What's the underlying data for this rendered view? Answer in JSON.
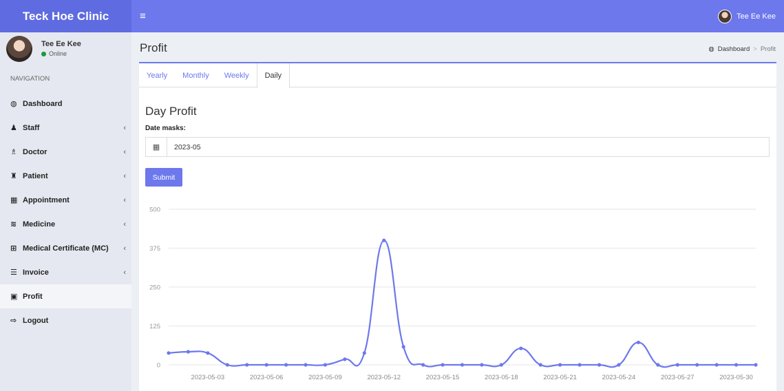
{
  "brand": "Teck Hoe Clinic",
  "topbar": {
    "menu_icon": "hamburger-icon",
    "user_name": "Tee Ee Kee"
  },
  "sidebar": {
    "user_name": "Tee Ee Kee",
    "status": "Online",
    "nav_header": "NAVIGATION",
    "items": [
      {
        "label": "Dashboard",
        "icon": "dashboard-icon",
        "glyph": "◍",
        "submenu": false
      },
      {
        "label": "Staff",
        "icon": "user-icon",
        "glyph": "♟",
        "submenu": true
      },
      {
        "label": "Doctor",
        "icon": "doctor-icon",
        "glyph": "♗",
        "submenu": true
      },
      {
        "label": "Patient",
        "icon": "users-icon",
        "glyph": "♜",
        "submenu": true
      },
      {
        "label": "Appointment",
        "icon": "calendar-icon",
        "glyph": "▦",
        "submenu": true
      },
      {
        "label": "Medicine",
        "icon": "database-icon",
        "glyph": "≋",
        "submenu": true
      },
      {
        "label": "Medical Certificate (MC)",
        "icon": "plus-square-icon",
        "glyph": "⊞",
        "submenu": true
      },
      {
        "label": "Invoice",
        "icon": "list-icon",
        "glyph": "☰",
        "submenu": true
      },
      {
        "label": "Profit",
        "icon": "money-icon",
        "glyph": "▣",
        "submenu": false,
        "active": true
      },
      {
        "label": "Logout",
        "icon": "sign-out-icon",
        "glyph": "⇨",
        "submenu": false
      }
    ]
  },
  "header": {
    "title": "Profit",
    "breadcrumb": {
      "home": "Dashboard",
      "current": "Profit"
    }
  },
  "tabs": [
    {
      "label": "Yearly",
      "active": false
    },
    {
      "label": "Monthly",
      "active": false
    },
    {
      "label": "Weekly",
      "active": false
    },
    {
      "label": "Daily",
      "active": true
    }
  ],
  "form": {
    "section_title": "Day Profit",
    "date_label": "Date masks:",
    "date_value": "2023-05",
    "submit_label": "Submit"
  },
  "colors": {
    "accent": "#6c78ec",
    "brand": "#5f6be0"
  },
  "chart_data": {
    "type": "line",
    "x": [
      "2023-05-01",
      "2023-05-02",
      "2023-05-03",
      "2023-05-04",
      "2023-05-05",
      "2023-05-06",
      "2023-05-07",
      "2023-05-08",
      "2023-05-09",
      "2023-05-10",
      "2023-05-11",
      "2023-05-12",
      "2023-05-13",
      "2023-05-14",
      "2023-05-15",
      "2023-05-16",
      "2023-05-17",
      "2023-05-18",
      "2023-05-19",
      "2023-05-20",
      "2023-05-21",
      "2023-05-22",
      "2023-05-23",
      "2023-05-24",
      "2023-05-25",
      "2023-05-26",
      "2023-05-27",
      "2023-05-28",
      "2023-05-29",
      "2023-05-30",
      "2023-05-31"
    ],
    "values": [
      38,
      42,
      38,
      0,
      0,
      0,
      0,
      0,
      0,
      18,
      38,
      400,
      58,
      0,
      0,
      0,
      0,
      0,
      53,
      0,
      0,
      0,
      0,
      0,
      72,
      0,
      0,
      0,
      0,
      0,
      0
    ],
    "xticks": [
      "2023-05-03",
      "2023-05-06",
      "2023-05-09",
      "2023-05-12",
      "2023-05-15",
      "2023-05-18",
      "2023-05-21",
      "2023-05-24",
      "2023-05-27",
      "2023-05-30"
    ],
    "yticks": [
      0,
      125,
      250,
      375,
      500
    ],
    "ylim": [
      0,
      500
    ],
    "grid": true,
    "color": "#6c78ec"
  }
}
